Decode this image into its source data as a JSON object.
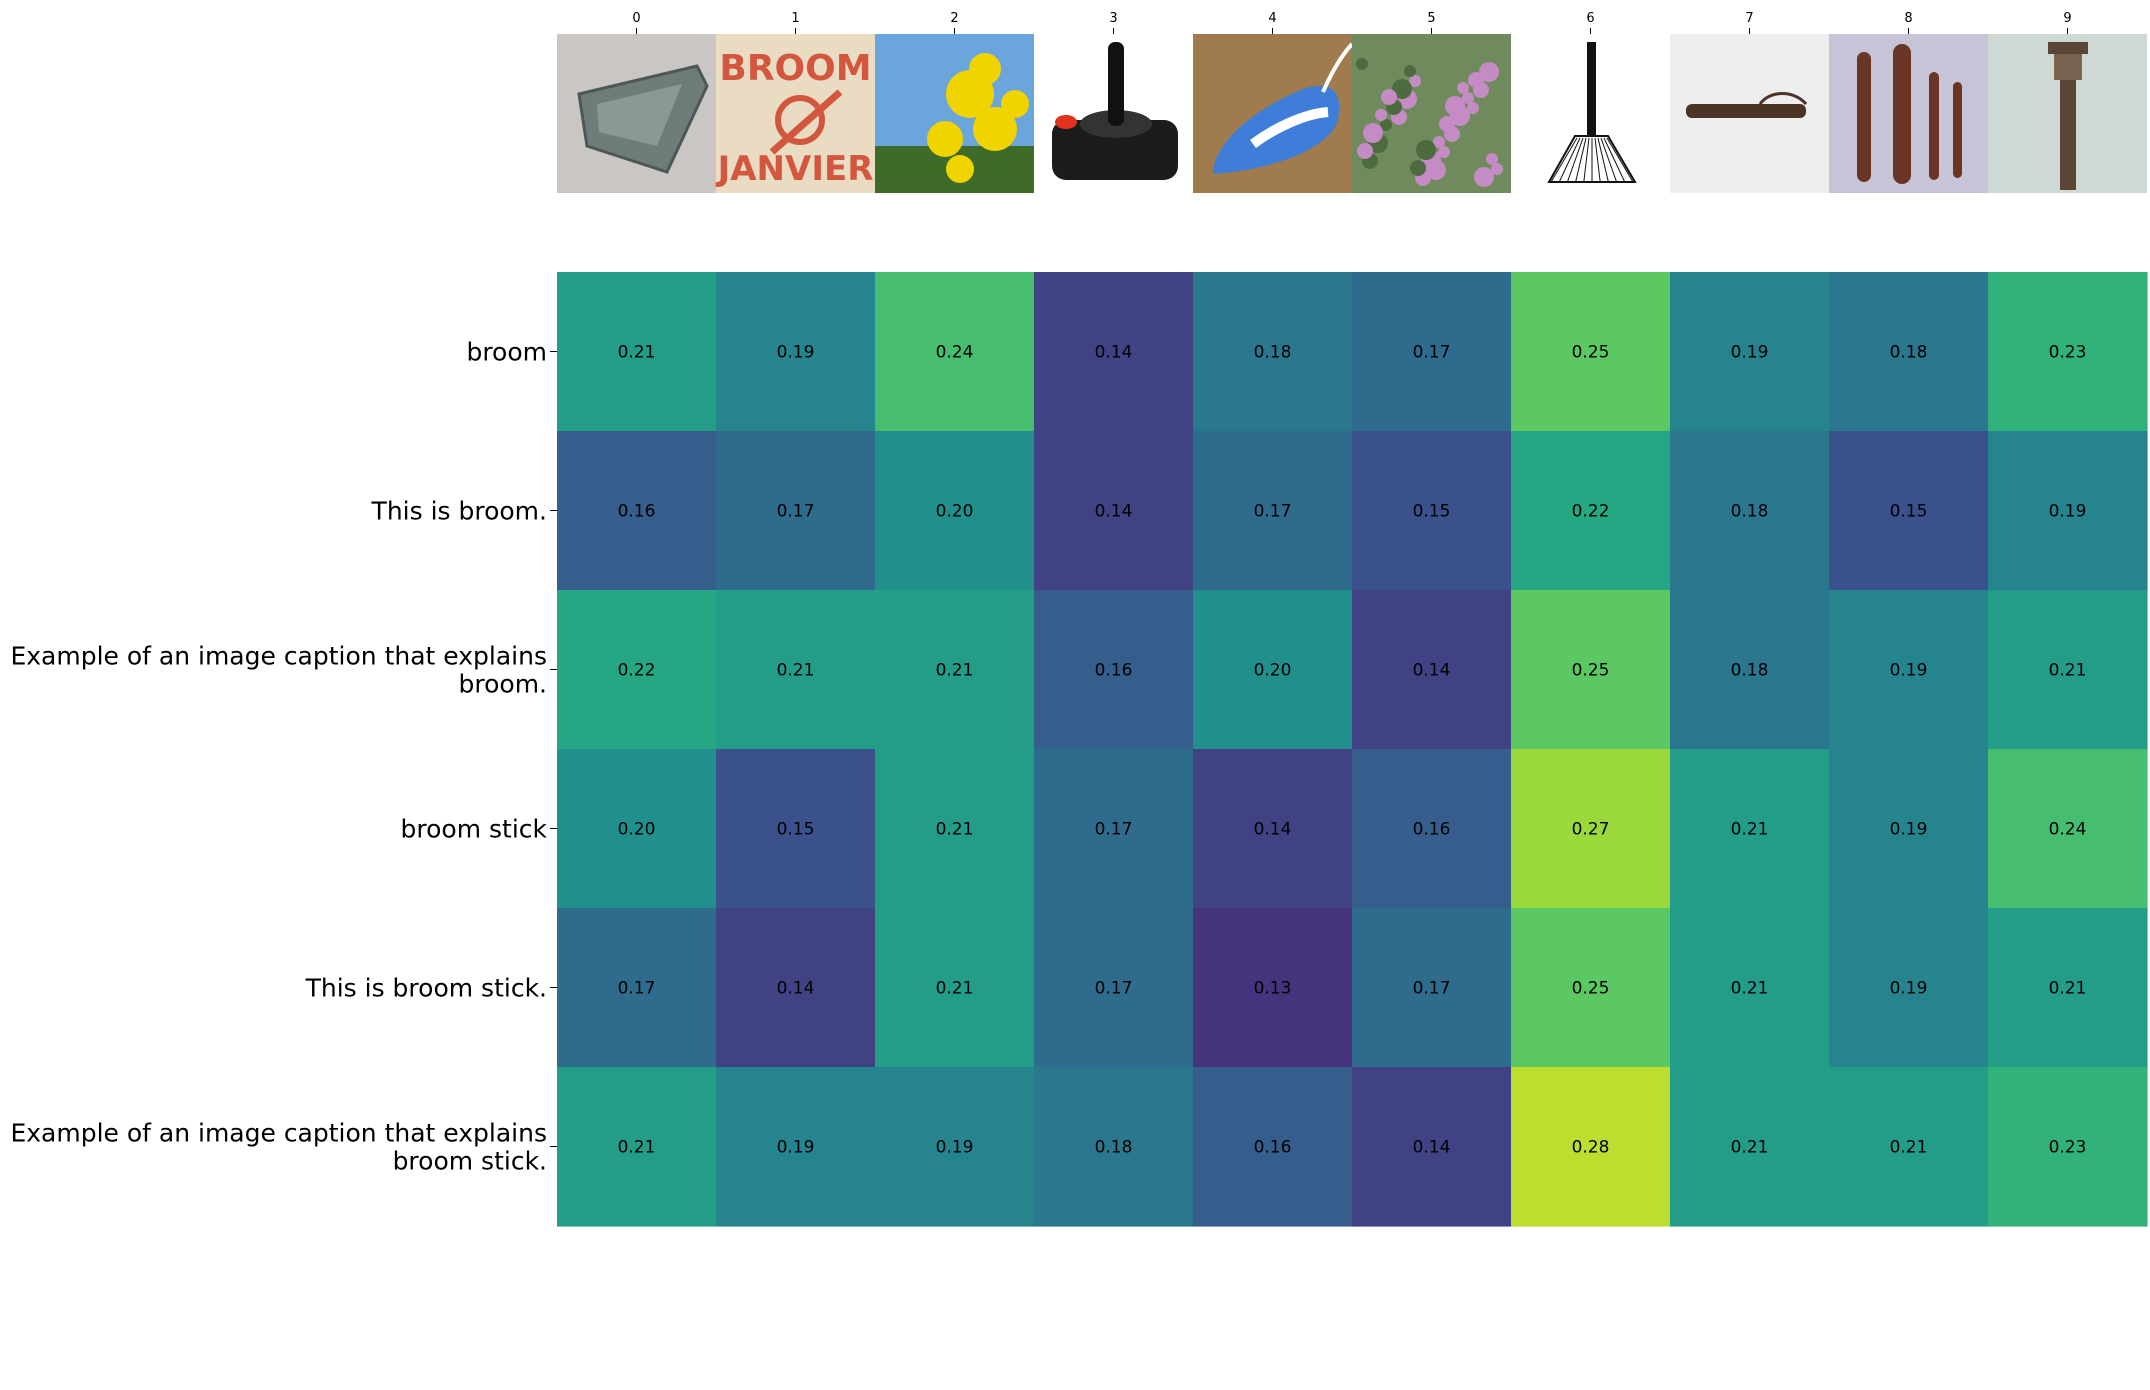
{
  "chart_data": {
    "type": "heatmap",
    "columns": [
      "0",
      "1",
      "2",
      "3",
      "4",
      "5",
      "6",
      "7",
      "8",
      "9"
    ],
    "column_thumbnails": [
      {
        "icon": "wedge-shaped-metal-object-icon",
        "colors": [
          "#c9c6c3",
          "#6f7d7a"
        ]
      },
      {
        "icon": "broom-poster-icon",
        "colors": [
          "#e9dcc3",
          "#d2573e"
        ],
        "text": [
          "BROOM",
          "JANVIER"
        ]
      },
      {
        "icon": "yellow-broom-flowers-icon",
        "colors": [
          "#6aa5dc",
          "#f0d400"
        ]
      },
      {
        "icon": "joystick-icon",
        "colors": [
          "#ffffff",
          "#1c1c1c"
        ]
      },
      {
        "icon": "clothes-iron-icon",
        "colors": [
          "#a07b4d",
          "#3f7ed8"
        ]
      },
      {
        "icon": "heather-bush-icon",
        "colors": [
          "#6f8a5c",
          "#c58bc4"
        ]
      },
      {
        "icon": "broom-drawing-icon",
        "colors": [
          "#ffffff",
          "#111111"
        ]
      },
      {
        "icon": "wooden-tube-icon",
        "colors": [
          "#eeeeee",
          "#4b3426"
        ]
      },
      {
        "icon": "carved-sticks-icon",
        "colors": [
          "#c7c4d8",
          "#6a3525"
        ]
      },
      {
        "icon": "carved-column-icon",
        "colors": [
          "#cfd9d3",
          "#5a4536"
        ]
      }
    ],
    "rows": [
      "broom",
      "This is broom.",
      "Example of an image caption that explains broom.",
      "broom stick",
      "This is broom stick.",
      "Example of an image caption that explains broom stick."
    ],
    "row_label_lines": [
      [
        "broom"
      ],
      [
        "This is broom."
      ],
      [
        "Example of an image caption that explains",
        "broom."
      ],
      [
        "broom stick"
      ],
      [
        "This is broom stick."
      ],
      [
        "Example of an image caption that explains",
        "broom stick."
      ]
    ],
    "values": [
      [
        0.21,
        0.19,
        0.24,
        0.14,
        0.18,
        0.17,
        0.25,
        0.19,
        0.18,
        0.23
      ],
      [
        0.16,
        0.17,
        0.2,
        0.14,
        0.17,
        0.15,
        0.22,
        0.18,
        0.15,
        0.19
      ],
      [
        0.22,
        0.21,
        0.21,
        0.16,
        0.2,
        0.14,
        0.25,
        0.18,
        0.19,
        0.21
      ],
      [
        0.2,
        0.15,
        0.21,
        0.17,
        0.14,
        0.16,
        0.27,
        0.21,
        0.19,
        0.24
      ],
      [
        0.17,
        0.14,
        0.21,
        0.17,
        0.13,
        0.17,
        0.25,
        0.21,
        0.19,
        0.21
      ],
      [
        0.21,
        0.19,
        0.19,
        0.18,
        0.16,
        0.14,
        0.28,
        0.21,
        0.21,
        0.23
      ]
    ],
    "colormap": "viridis",
    "vmin": 0.1,
    "vmax": 0.3,
    "value_format": "2 decimals",
    "grid": false,
    "legend": "none"
  }
}
